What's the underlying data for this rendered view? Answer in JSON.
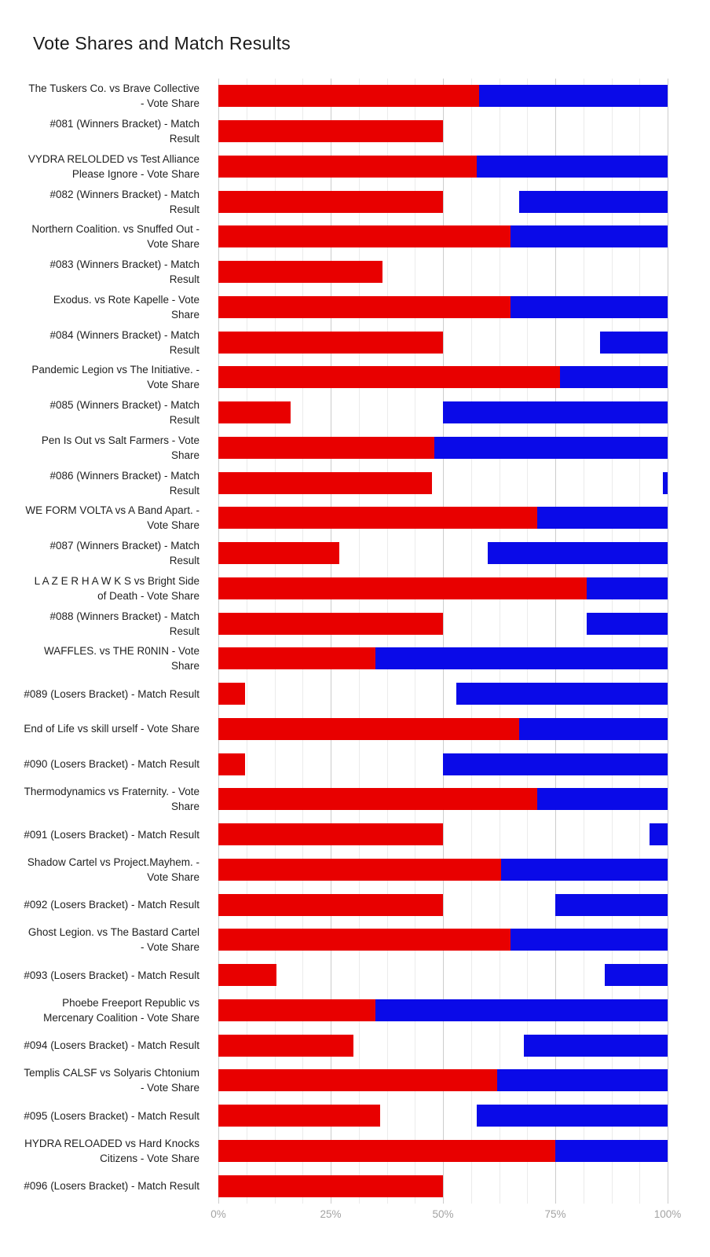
{
  "chart_data": {
    "type": "bar",
    "orientation": "horizontal",
    "stacked": true,
    "grid": true,
    "legend": "none",
    "title": "Vote Shares and Match Results",
    "xlabel": "",
    "ylabel": "",
    "x_axis": {
      "range": [
        0,
        100
      ],
      "tick_values": [
        0,
        25,
        50,
        75,
        100
      ],
      "tick_labels": [
        "0%",
        "25%",
        "50%",
        "75%",
        "100%"
      ],
      "minor_gridline_step": 6.25
    },
    "colors": {
      "red": "#e80000",
      "blue": "#0a0ae8"
    },
    "rows": [
      {
        "label": "The Tuskers Co. vs Brave Collective - Vote Share",
        "red": [
          0,
          58
        ],
        "blue": [
          58,
          100
        ]
      },
      {
        "label": "#081 (Winners Bracket) - Match Result",
        "red": [
          0,
          50
        ],
        "blue": null
      },
      {
        "label": "VYDRA RELOLDED vs Test Alliance Please Ignore - Vote Share",
        "red": [
          0,
          57.5
        ],
        "blue": [
          57.5,
          100
        ]
      },
      {
        "label": "#082 (Winners Bracket) - Match Result",
        "red": [
          0,
          50
        ],
        "blue": [
          67,
          100
        ]
      },
      {
        "label": "Northern Coalition. vs Snuffed Out - Vote Share",
        "red": [
          0,
          65
        ],
        "blue": [
          65,
          100
        ]
      },
      {
        "label": "#083 (Winners Bracket) - Match Result",
        "red": [
          0,
          36.5
        ],
        "blue": null
      },
      {
        "label": "Exodus. vs Rote Kapelle - Vote Share",
        "red": [
          0,
          65
        ],
        "blue": [
          65,
          100
        ]
      },
      {
        "label": "#084 (Winners Bracket) - Match Result",
        "red": [
          0,
          50
        ],
        "blue": [
          85,
          100
        ]
      },
      {
        "label": "Pandemic Legion vs The Initiative. - Vote Share",
        "red": [
          0,
          76
        ],
        "blue": [
          76,
          100
        ]
      },
      {
        "label": "#085 (Winners Bracket) - Match Result",
        "red": [
          0,
          16
        ],
        "blue": [
          50,
          100
        ]
      },
      {
        "label": "Pen Is Out vs Salt Farmers - Vote Share",
        "red": [
          0,
          48
        ],
        "blue": [
          48,
          100
        ]
      },
      {
        "label": "#086 (Winners Bracket) - Match Result",
        "red": [
          0,
          47.5
        ],
        "blue": [
          99,
          100
        ]
      },
      {
        "label": "WE FORM VOLTA vs A Band Apart. - Vote Share",
        "red": [
          0,
          71
        ],
        "blue": [
          71,
          100
        ]
      },
      {
        "label": "#087 (Winners Bracket) - Match Result",
        "red": [
          0,
          27
        ],
        "blue": [
          60,
          100
        ]
      },
      {
        "label": "L A Z E R H A W K S  vs Bright Side of Death - Vote Share",
        "red": [
          0,
          82
        ],
        "blue": [
          82,
          100
        ]
      },
      {
        "label": "#088 (Winners Bracket) - Match Result",
        "red": [
          0,
          50
        ],
        "blue": [
          82,
          100
        ]
      },
      {
        "label": "WAFFLES. vs THE R0NIN - Vote Share",
        "red": [
          0,
          35
        ],
        "blue": [
          35,
          100
        ]
      },
      {
        "label": "#089 (Losers Bracket) - Match Result",
        "red": [
          0,
          6
        ],
        "blue": [
          53,
          100
        ]
      },
      {
        "label": "End of Life vs skill urself - Vote Share",
        "red": [
          0,
          67
        ],
        "blue": [
          67,
          100
        ]
      },
      {
        "label": "#090 (Losers Bracket) - Match Result",
        "red": [
          0,
          6
        ],
        "blue": [
          50,
          100
        ]
      },
      {
        "label": "Thermodynamics vs Fraternity. - Vote Share",
        "red": [
          0,
          71
        ],
        "blue": [
          71,
          100
        ]
      },
      {
        "label": "#091 (Losers Bracket) - Match Result",
        "red": [
          0,
          50
        ],
        "blue": [
          96,
          100
        ]
      },
      {
        "label": "Shadow Cartel vs Project.Mayhem. - Vote Share",
        "red": [
          0,
          63
        ],
        "blue": [
          63,
          100
        ]
      },
      {
        "label": "#092 (Losers Bracket) - Match Result",
        "red": [
          0,
          50
        ],
        "blue": [
          75,
          100
        ]
      },
      {
        "label": "Ghost Legion. vs The Bastard Cartel - Vote Share",
        "red": [
          0,
          65
        ],
        "blue": [
          65,
          100
        ]
      },
      {
        "label": "#093 (Losers Bracket) - Match Result",
        "red": [
          0,
          13
        ],
        "blue": [
          86,
          100
        ]
      },
      {
        "label": "Phoebe Freeport Republic vs Mercenary Coalition - Vote Share",
        "red": [
          0,
          35
        ],
        "blue": [
          35,
          100
        ]
      },
      {
        "label": "#094 (Losers Bracket) - Match Result",
        "red": [
          0,
          30
        ],
        "blue": [
          68,
          100
        ]
      },
      {
        "label": "Templis CALSF vs Solyaris Chtonium - Vote Share",
        "red": [
          0,
          62
        ],
        "blue": [
          62,
          100
        ]
      },
      {
        "label": "#095 (Losers Bracket) - Match Result",
        "red": [
          0,
          36
        ],
        "blue": [
          57.5,
          100
        ]
      },
      {
        "label": "HYDRA RELOADED vs Hard Knocks Citizens - Vote Share",
        "red": [
          0,
          75
        ],
        "blue": [
          75,
          100
        ]
      },
      {
        "label": "#096 (Losers Bracket) - Match Result",
        "red": [
          0,
          50
        ],
        "blue": null
      }
    ]
  }
}
